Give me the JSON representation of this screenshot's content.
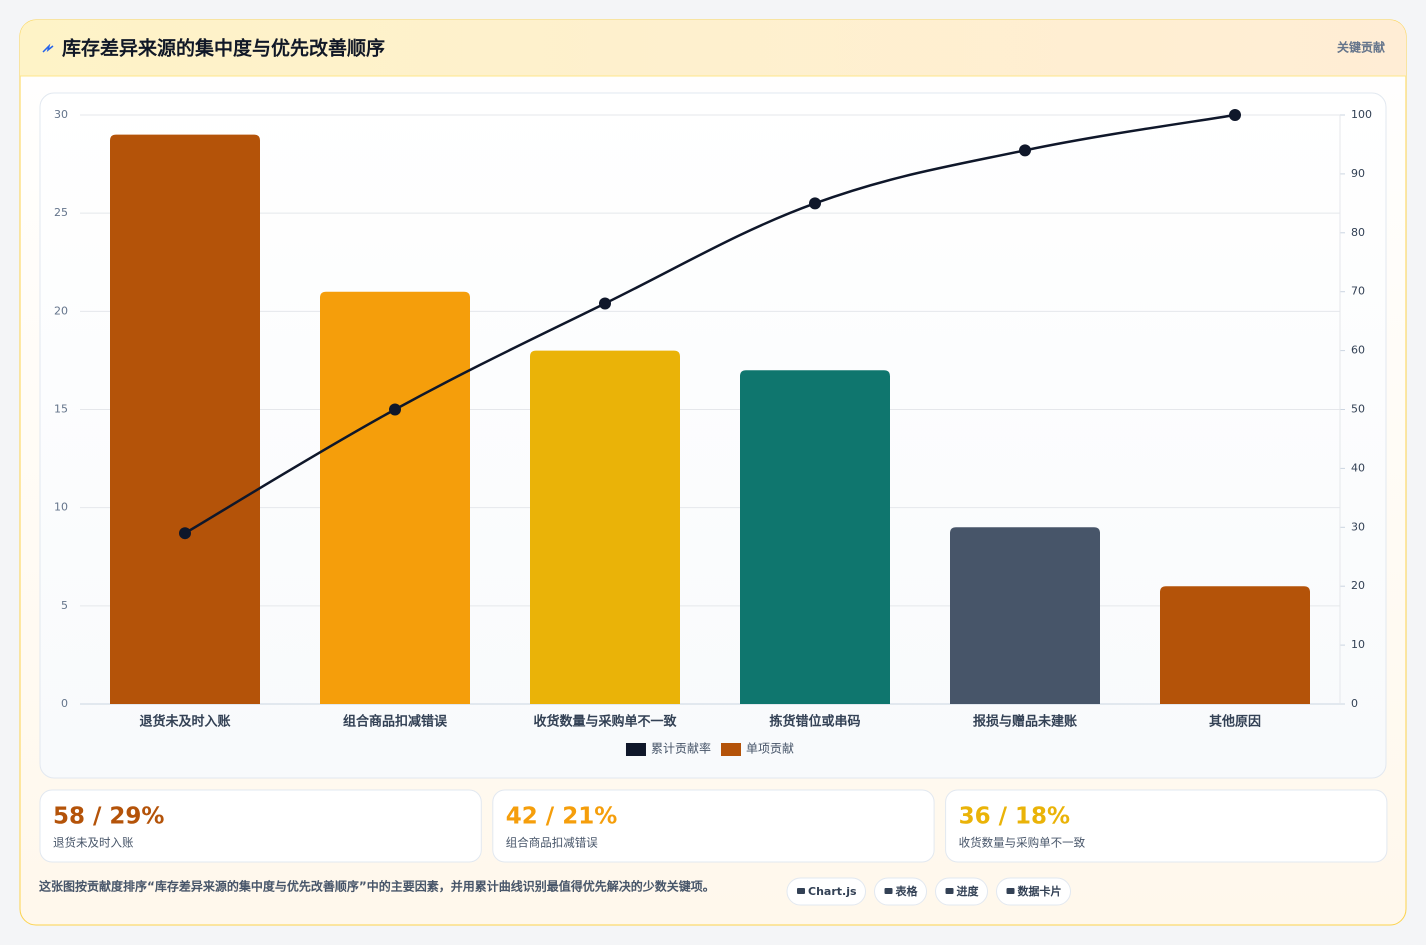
{
  "header": {
    "title": "库存差异来源的集中度与优先改善顺序",
    "tag": "关键贡献"
  },
  "chart_data": {
    "type": "bar",
    "categories": [
      "退货未及时入账",
      "组合商品扣减错误",
      "收货数量与采购单不一致",
      "拣货错位或串码",
      "报损与赠品未建账",
      "其他原因"
    ],
    "series": [
      {
        "name": "累计贡献率",
        "type": "line",
        "color": "#0f172a",
        "axis": "y2",
        "values": [
          29,
          50,
          68,
          85,
          94,
          100
        ]
      },
      {
        "name": "单项贡献",
        "type": "bar",
        "color": "#b45309",
        "colors": [
          "#b45309",
          "#f59e0b",
          "#eab308",
          "#0f766e",
          "#475569",
          "#b45309"
        ],
        "values": [
          29,
          21,
          18,
          17,
          9,
          6
        ]
      }
    ],
    "ylim": [
      0,
      30
    ],
    "yticks": [
      0,
      5,
      10,
      15,
      20,
      25,
      30
    ],
    "y2lim": [
      0,
      100
    ],
    "y2ticks": [
      0,
      10,
      20,
      30,
      40,
      50,
      60,
      70,
      80,
      90,
      100
    ],
    "grid": true,
    "legend": "bottom"
  },
  "cards": [
    {
      "value": "58 / 29%",
      "label": "退货未及时入账",
      "color": "#b45309"
    },
    {
      "value": "42 / 21%",
      "label": "组合商品扣减错误",
      "color": "#f59e0b"
    },
    {
      "value": "36 / 18%",
      "label": "收货数量与采购单不一致",
      "color": "#eab308"
    }
  ],
  "footer": {
    "text": "这张图按贡献度排序“库存差异来源的集中度与优先改善顺序”中的主要因素，并用累计曲线识别最值得优先解决的少数关键项。",
    "chips": [
      "Chart.js",
      "表格",
      "进度",
      "数据卡片"
    ]
  }
}
